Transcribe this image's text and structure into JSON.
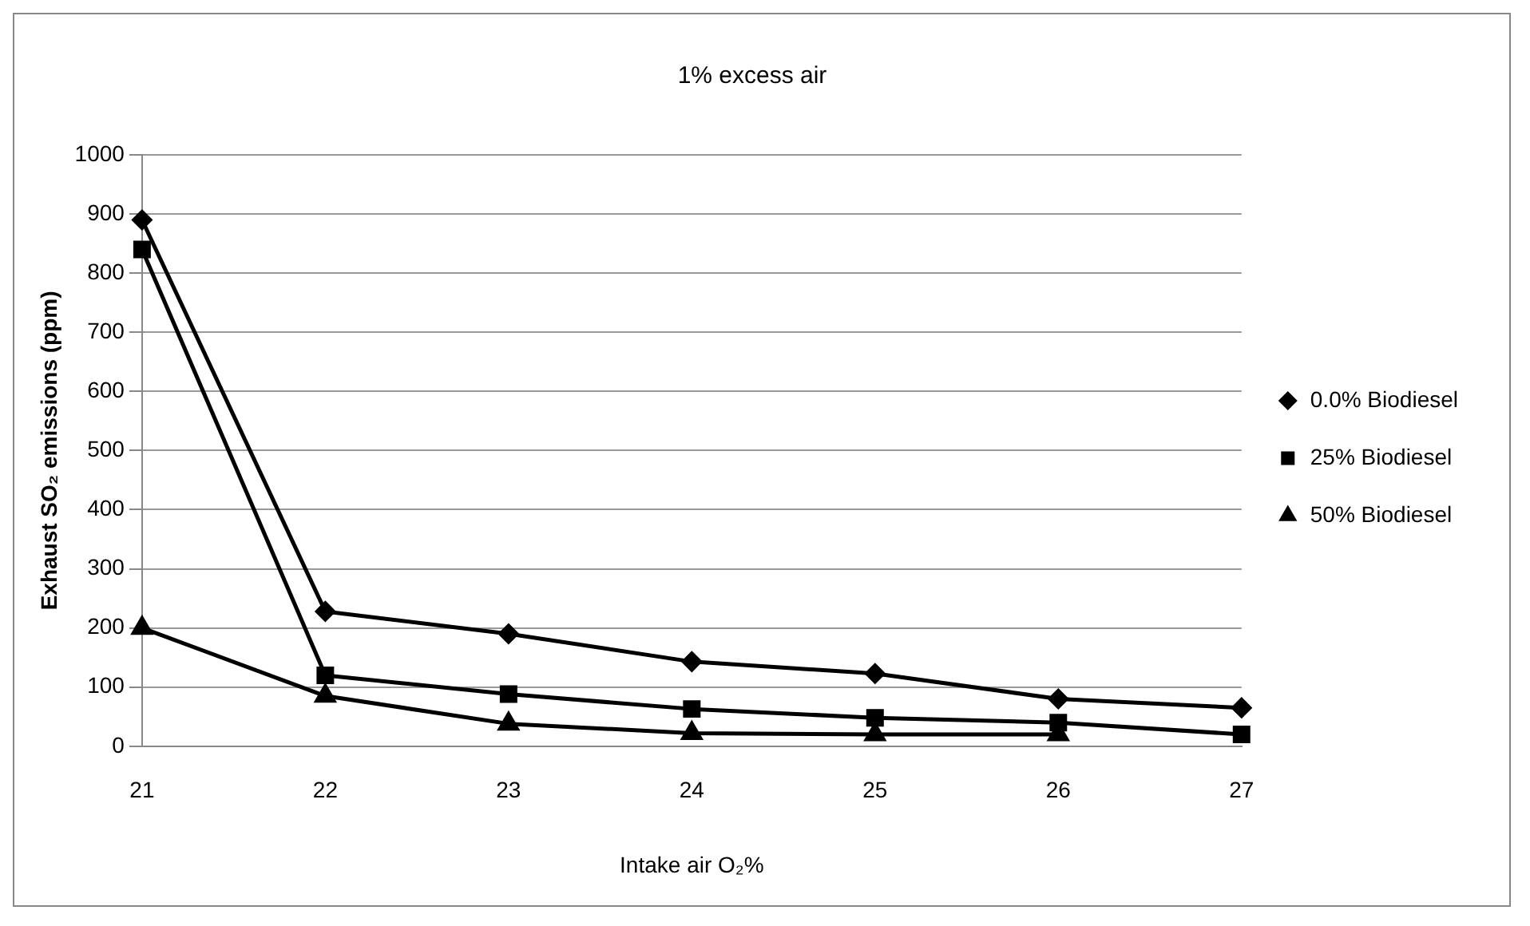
{
  "chart_data": {
    "type": "line",
    "title": "1% excess air",
    "xlabel": "Intake air O₂%",
    "ylabel": "Exhaust SO₂ emissions (ppm)",
    "categories": [
      "21",
      "22",
      "23",
      "24",
      "25",
      "26",
      "27"
    ],
    "series": [
      {
        "name": "0.0% Biodiesel",
        "color": "#000000",
        "marker": "diamond",
        "values": [
          890,
          228,
          190,
          143,
          123,
          80,
          65
        ]
      },
      {
        "name": "25% Biodiesel",
        "color": "#000000",
        "marker": "square",
        "values": [
          840,
          120,
          88,
          63,
          48,
          40,
          20
        ]
      },
      {
        "name": "50% Biodiesel",
        "color": "#000000",
        "marker": "triangle",
        "values": [
          200,
          85,
          38,
          22,
          20,
          20,
          null
        ]
      }
    ],
    "ylim": [
      0,
      1000
    ],
    "yticks": [
      0,
      100,
      200,
      300,
      400,
      500,
      600,
      700,
      800,
      900,
      1000
    ],
    "grid": "y",
    "legend": "right",
    "line_style": "solid"
  }
}
